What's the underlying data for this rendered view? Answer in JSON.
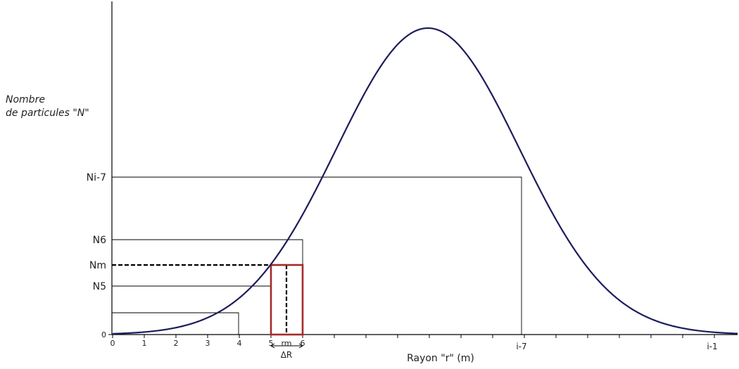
{
  "y_axis_title_line1": "Nombre",
  "y_axis_title_line2": "de particules \"N\"",
  "x_axis_title": "Rayon \"r\" (m)",
  "delta_label": "ΔR",
  "y_ticks": [
    {
      "key": "ni7",
      "label": "Ni-7"
    },
    {
      "key": "n6",
      "label": "N6"
    },
    {
      "key": "nm",
      "label": "Nm"
    },
    {
      "key": "n5",
      "label": "N5"
    },
    {
      "key": "zero",
      "label": "0"
    }
  ],
  "x_ticks": [
    {
      "key": "x0",
      "label": "0"
    },
    {
      "key": "x1",
      "label": "1"
    },
    {
      "key": "x2",
      "label": "2"
    },
    {
      "key": "x3",
      "label": "3"
    },
    {
      "key": "x4",
      "label": "4"
    },
    {
      "key": "x5",
      "label": "5"
    },
    {
      "key": "xrm",
      "label": "rm"
    },
    {
      "key": "x6",
      "label": "6"
    },
    {
      "key": "xi7",
      "label": "i-7"
    },
    {
      "key": "xi1",
      "label": "i-1"
    }
  ],
  "colors": {
    "curve": "#1c1c5c",
    "axis": "#000000",
    "highlight": "#a52a2a"
  }
}
